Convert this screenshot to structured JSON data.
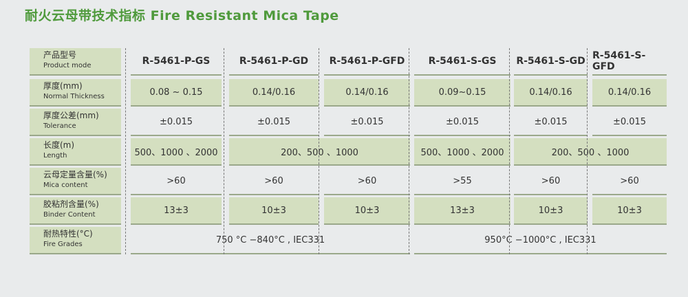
{
  "title": "耐火云母带技术指标 Fire Resistant Mica Tape",
  "rows": [
    {
      "zh": "产品型号",
      "en": "Product mode",
      "vals": [
        "R-5461-P-GS",
        "R-5461-P-GD",
        "R-5461-P-GFD",
        "R-5461-S-GS",
        "R-5461-S-GD",
        "R-5461-S-GFD"
      ]
    },
    {
      "zh": "厚度(mm)",
      "en": "Normal Thickness",
      "vals": [
        "0.08 ~ 0.15",
        "0.14/0.16",
        "0.14/0.16",
        "0.09~0.15",
        "0.14/0.16",
        "0.14/0.16"
      ]
    },
    {
      "zh": "厚度公差(mm)",
      "en": "Tolerance",
      "vals": [
        "±0.015",
        "±0.015",
        "±0.015",
        "±0.015",
        "±0.015",
        "±0.015"
      ]
    },
    {
      "zh": "长度(m)",
      "en": "Length",
      "vals": [
        "500、1000 、2000",
        "200、500 、1000",
        "500、1000 、2000",
        "200、500 、1000"
      ]
    },
    {
      "zh": "云母定量含量(%)",
      "en": "Mica content",
      "vals": [
        ">60",
        ">60",
        ">60",
        ">55",
        ">60",
        ">60"
      ]
    },
    {
      "zh": "胶粘剂含量(%)",
      "en": "Binder Content",
      "vals": [
        "13±3",
        "10±3",
        "10±3",
        "13±3",
        "10±3",
        "10±3"
      ]
    },
    {
      "zh": "耐热特性(°C)",
      "en": "Fire Grades",
      "vals": [
        "750 °C −840°C , IEC331",
        "950°C −1000°C , IEC331"
      ]
    }
  ]
}
